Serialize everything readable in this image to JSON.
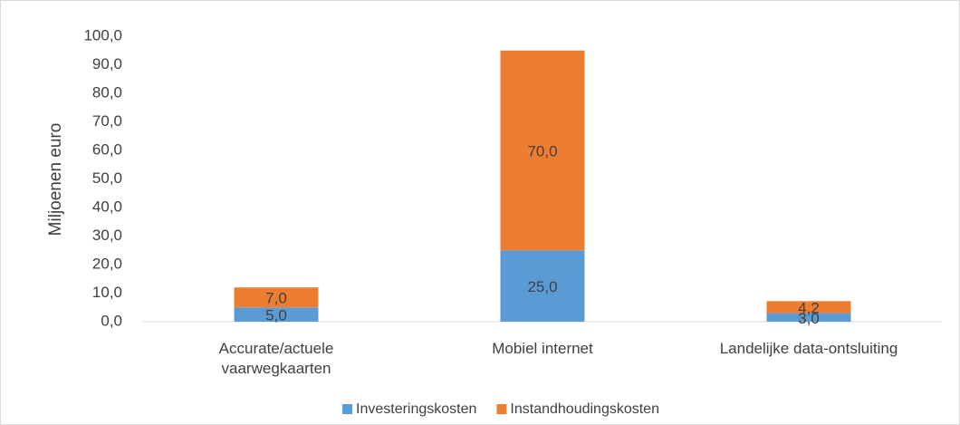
{
  "chart_data": {
    "type": "stacked_bar",
    "ylabel": "Miljoenen euro",
    "categories": [
      "Accurate/actuele vaarwegkaarten",
      "Mobiel internet",
      "Landelijke data-ontsluiting"
    ],
    "series": [
      {
        "name": "Investeringskosten",
        "color": "#5b9bd5",
        "values": [
          5,
          25,
          3
        ],
        "value_labels": [
          "5,0",
          "25,0",
          "3,0"
        ]
      },
      {
        "name": "Instandhoudingskosten",
        "color": "#ed7d31",
        "values": [
          7,
          70,
          4.2
        ],
        "value_labels": [
          "7,0",
          "70,0",
          "4,2"
        ]
      }
    ],
    "ylim": [
      0,
      100
    ],
    "yticks": [
      {
        "value": 0,
        "label": "0,0"
      },
      {
        "value": 10,
        "label": "10,0"
      },
      {
        "value": 20,
        "label": "20,0"
      },
      {
        "value": 30,
        "label": "30,0"
      },
      {
        "value": 40,
        "label": "40,0"
      },
      {
        "value": 50,
        "label": "50,0"
      },
      {
        "value": 60,
        "label": "60,0"
      },
      {
        "value": 70,
        "label": "70,0"
      },
      {
        "value": 80,
        "label": "80,0"
      },
      {
        "value": 90,
        "label": "90,0"
      },
      {
        "value": 100,
        "label": "100,0"
      }
    ],
    "legend": "bottom"
  }
}
